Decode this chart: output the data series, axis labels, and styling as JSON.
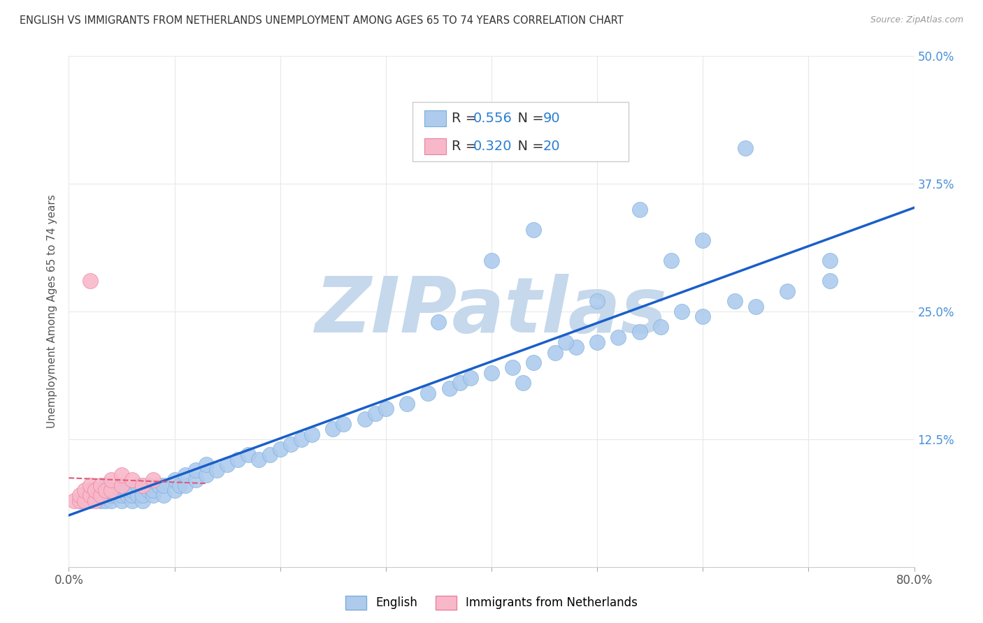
{
  "title": "ENGLISH VS IMMIGRANTS FROM NETHERLANDS UNEMPLOYMENT AMONG AGES 65 TO 74 YEARS CORRELATION CHART",
  "source": "Source: ZipAtlas.com",
  "ylabel": "Unemployment Among Ages 65 to 74 years",
  "xlim": [
    0.0,
    0.8
  ],
  "ylim": [
    0.0,
    0.5
  ],
  "xticks": [
    0.0,
    0.1,
    0.2,
    0.3,
    0.4,
    0.5,
    0.6,
    0.7,
    0.8
  ],
  "yticks": [
    0.0,
    0.125,
    0.25,
    0.375,
    0.5
  ],
  "english_R": 0.556,
  "english_N": 90,
  "netherlands_R": 0.32,
  "netherlands_N": 20,
  "english_color": "#aecbee",
  "english_edge_color": "#7aadd8",
  "netherlands_color": "#f9b8ca",
  "netherlands_edge_color": "#e880a0",
  "english_line_color": "#1a5fc8",
  "netherlands_line_color": "#e05878",
  "watermark": "ZIPatlas",
  "watermark_color": "#c5d8ec",
  "background_color": "#ffffff",
  "grid_color": "#e8e8e8",
  "ytick_color": "#4a90d9",
  "title_color": "#333333",
  "source_color": "#999999",
  "english_x": [
    0.01,
    0.015,
    0.02,
    0.02,
    0.025,
    0.025,
    0.03,
    0.03,
    0.03,
    0.035,
    0.035,
    0.04,
    0.04,
    0.04,
    0.045,
    0.045,
    0.05,
    0.05,
    0.05,
    0.055,
    0.055,
    0.06,
    0.06,
    0.06,
    0.065,
    0.065,
    0.07,
    0.07,
    0.075,
    0.075,
    0.08,
    0.08,
    0.085,
    0.09,
    0.09,
    0.1,
    0.1,
    0.105,
    0.11,
    0.11,
    0.12,
    0.12,
    0.13,
    0.13,
    0.14,
    0.15,
    0.16,
    0.17,
    0.18,
    0.19,
    0.2,
    0.21,
    0.22,
    0.23,
    0.25,
    0.26,
    0.28,
    0.29,
    0.3,
    0.32,
    0.34,
    0.36,
    0.37,
    0.38,
    0.4,
    0.42,
    0.43,
    0.44,
    0.46,
    0.48,
    0.5,
    0.52,
    0.54,
    0.56,
    0.58,
    0.6,
    0.63,
    0.65,
    0.68,
    0.72,
    0.35,
    0.4,
    0.44,
    0.47,
    0.5,
    0.54,
    0.57,
    0.6,
    0.64,
    0.72
  ],
  "english_y": [
    0.065,
    0.07,
    0.065,
    0.075,
    0.07,
    0.075,
    0.065,
    0.07,
    0.075,
    0.065,
    0.08,
    0.065,
    0.07,
    0.075,
    0.07,
    0.075,
    0.065,
    0.07,
    0.075,
    0.07,
    0.075,
    0.065,
    0.07,
    0.075,
    0.07,
    0.08,
    0.065,
    0.07,
    0.075,
    0.08,
    0.07,
    0.075,
    0.08,
    0.07,
    0.08,
    0.075,
    0.085,
    0.08,
    0.08,
    0.09,
    0.085,
    0.095,
    0.09,
    0.1,
    0.095,
    0.1,
    0.105,
    0.11,
    0.105,
    0.11,
    0.115,
    0.12,
    0.125,
    0.13,
    0.135,
    0.14,
    0.145,
    0.15,
    0.155,
    0.16,
    0.17,
    0.175,
    0.18,
    0.185,
    0.19,
    0.195,
    0.18,
    0.2,
    0.21,
    0.215,
    0.22,
    0.225,
    0.23,
    0.235,
    0.25,
    0.245,
    0.26,
    0.255,
    0.27,
    0.28,
    0.24,
    0.3,
    0.33,
    0.22,
    0.26,
    0.35,
    0.3,
    0.32,
    0.41,
    0.3
  ],
  "netherlands_x": [
    0.005,
    0.01,
    0.01,
    0.015,
    0.015,
    0.02,
    0.02,
    0.025,
    0.025,
    0.03,
    0.03,
    0.035,
    0.04,
    0.04,
    0.05,
    0.05,
    0.06,
    0.07,
    0.08,
    0.02
  ],
  "netherlands_y": [
    0.065,
    0.065,
    0.07,
    0.065,
    0.075,
    0.07,
    0.08,
    0.065,
    0.075,
    0.07,
    0.08,
    0.075,
    0.075,
    0.085,
    0.08,
    0.09,
    0.085,
    0.08,
    0.085,
    0.28
  ]
}
